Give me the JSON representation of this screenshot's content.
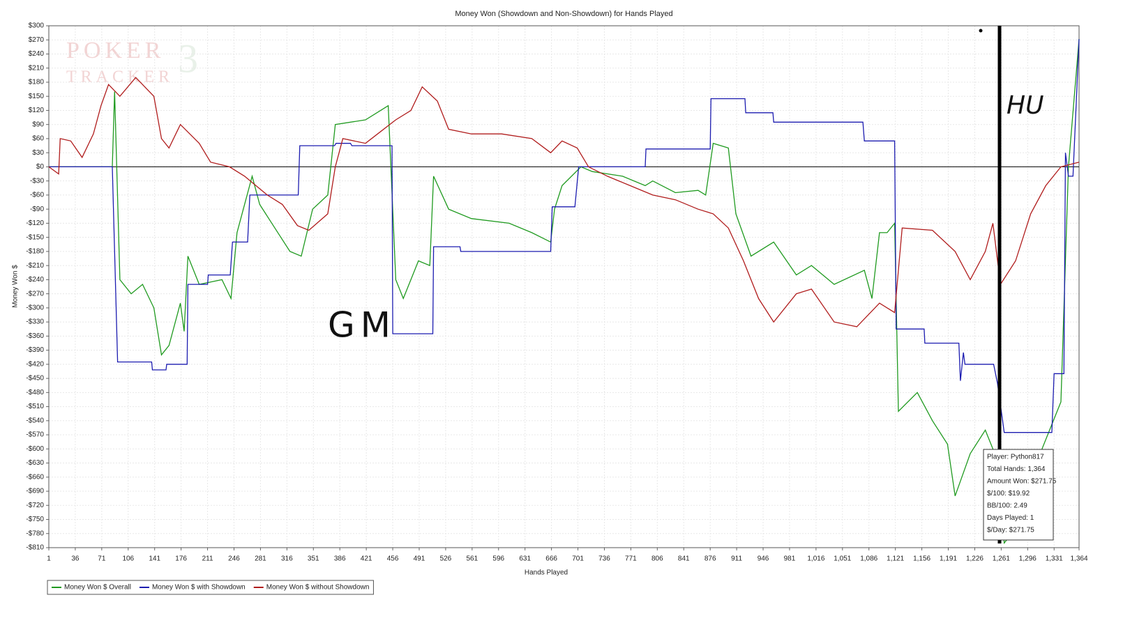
{
  "chart_data": {
    "type": "line",
    "title": "Money Won (Showdown and Non-Showdown) for Hands Played",
    "x_label": "Hands Played",
    "y_label": "Money Won $",
    "watermark": [
      "POKER",
      "TRACKER",
      "3"
    ],
    "annotations": [
      "GM",
      "HU"
    ],
    "tooltip": [
      "Player: Python817",
      "Total Hands: 1,364",
      "Amount Won: $271.75",
      "$/100: $19.92",
      "BB/100: 2.49",
      "Days Played: 1",
      "$/Day: $271.75"
    ],
    "grid": true,
    "legend": "bottom-left",
    "xlim": [
      1,
      1364
    ],
    "ylim": [
      -810,
      300
    ],
    "xticks": [
      1,
      36,
      71,
      106,
      141,
      176,
      211,
      246,
      281,
      316,
      351,
      386,
      421,
      456,
      491,
      526,
      561,
      596,
      631,
      666,
      701,
      736,
      771,
      806,
      841,
      876,
      911,
      946,
      981,
      {
        "value": 1016,
        "label": "1,016"
      },
      {
        "value": 1051,
        "label": "1,051"
      },
      {
        "value": 1086,
        "label": "1,086"
      },
      {
        "value": 1121,
        "label": "1,121"
      },
      {
        "value": 1156,
        "label": "1,156"
      },
      {
        "value": 1191,
        "label": "1,191"
      },
      {
        "value": 1226,
        "label": "1,226"
      },
      {
        "value": 1261,
        "label": "1,261"
      },
      {
        "value": 1296,
        "label": "1,296"
      },
      {
        "value": 1331,
        "label": "1,331"
      },
      {
        "value": 1364,
        "label": "1,364"
      }
    ],
    "yticks": [
      {
        "value": 300,
        "label": "$300"
      },
      {
        "value": 270,
        "label": "$270"
      },
      {
        "value": 240,
        "label": "$240"
      },
      {
        "value": 210,
        "label": "$210"
      },
      {
        "value": 180,
        "label": "$180"
      },
      {
        "value": 150,
        "label": "$150"
      },
      {
        "value": 120,
        "label": "$120"
      },
      {
        "value": 90,
        "label": "$90"
      },
      {
        "value": 60,
        "label": "$60"
      },
      {
        "value": 30,
        "label": "$30"
      },
      {
        "value": 0,
        "label": "$0"
      },
      {
        "value": -30,
        "label": "-$30"
      },
      {
        "value": -60,
        "label": "-$60"
      },
      {
        "value": -90,
        "label": "-$90"
      },
      {
        "value": -120,
        "label": "-$120"
      },
      {
        "value": -150,
        "label": "-$150"
      },
      {
        "value": -180,
        "label": "-$180"
      },
      {
        "value": -210,
        "label": "-$210"
      },
      {
        "value": -240,
        "label": "-$240"
      },
      {
        "value": -270,
        "label": "-$270"
      },
      {
        "value": -300,
        "label": "-$300"
      },
      {
        "value": -330,
        "label": "-$330"
      },
      {
        "value": -360,
        "label": "-$360"
      },
      {
        "value": -390,
        "label": "-$390"
      },
      {
        "value": -420,
        "label": "-$420"
      },
      {
        "value": -450,
        "label": "-$450"
      },
      {
        "value": -480,
        "label": "-$480"
      },
      {
        "value": -510,
        "label": "-$510"
      },
      {
        "value": -540,
        "label": "-$540"
      },
      {
        "value": -570,
        "label": "-$570"
      },
      {
        "value": -600,
        "label": "-$600"
      },
      {
        "value": -630,
        "label": "-$630"
      },
      {
        "value": -660,
        "label": "-$660"
      },
      {
        "value": -690,
        "label": "-$690"
      },
      {
        "value": -720,
        "label": "-$720"
      },
      {
        "value": -750,
        "label": "-$750"
      },
      {
        "value": -780,
        "label": "-$780"
      },
      {
        "value": -810,
        "label": "-$810"
      }
    ],
    "series": [
      {
        "name": "Money Won $ Overall",
        "color": "#1f9a1f",
        "x": [
          1,
          85,
          88,
          95,
          110,
          125,
          140,
          150,
          160,
          175,
          180,
          185,
          200,
          230,
          242,
          250,
          270,
          280,
          300,
          320,
          335,
          350,
          370,
          380,
          420,
          450,
          460,
          470,
          490,
          505,
          510,
          530,
          560,
          610,
          640,
          665,
          670,
          680,
          705,
          720,
          760,
          790,
          800,
          830,
          860,
          870,
          880,
          900,
          910,
          930,
          960,
          990,
          1010,
          1040,
          1080,
          1090,
          1100,
          1110,
          1120,
          1125,
          1150,
          1170,
          1190,
          1200,
          1220,
          1240,
          1255,
          1265,
          1290,
          1315,
          1340,
          1350,
          1364
        ],
        "values": [
          0,
          0,
          160,
          -240,
          -270,
          -250,
          -300,
          -400,
          -380,
          -290,
          -350,
          -190,
          -250,
          -240,
          -280,
          -140,
          -20,
          -80,
          -130,
          -180,
          -190,
          -90,
          -60,
          90,
          100,
          130,
          -240,
          -280,
          -200,
          -210,
          -20,
          -90,
          -110,
          -120,
          -140,
          -160,
          -90,
          -40,
          0,
          -10,
          -20,
          -40,
          -30,
          -55,
          -50,
          -60,
          50,
          40,
          -100,
          -190,
          -160,
          -230,
          -210,
          -250,
          -220,
          -280,
          -140,
          -140,
          -120,
          -520,
          -480,
          -540,
          -590,
          -700,
          -610,
          -560,
          -620,
          -800,
          -750,
          -600,
          -500,
          0,
          271.75
        ]
      },
      {
        "name": "Money Won $ with Showdown",
        "color": "#1c1cb0",
        "x": [
          1,
          85,
          92,
          137,
          138,
          156,
          157,
          184,
          185,
          211,
          212,
          241,
          244,
          264,
          267,
          331,
          333,
          379,
          381,
          400,
          402,
          455,
          456,
          509,
          510,
          545,
          546,
          665,
          667,
          697,
          702,
          790,
          791,
          876,
          877,
          922,
          923,
          959,
          960,
          1078,
          1080,
          1120,
          1122,
          1159,
          1160,
          1205,
          1207,
          1211,
          1213,
          1251,
          1256,
          1265,
          1266,
          1328,
          1331,
          1344,
          1346,
          1350,
          1356,
          1364
        ],
        "values": [
          0,
          0,
          -415,
          -415,
          -432,
          -432,
          -420,
          -420,
          -250,
          -250,
          -230,
          -230,
          -160,
          -160,
          -60,
          -60,
          45,
          45,
          50,
          50,
          45,
          45,
          -355,
          -355,
          -170,
          -170,
          -180,
          -180,
          -85,
          -85,
          0,
          0,
          38,
          38,
          145,
          145,
          115,
          115,
          95,
          95,
          55,
          55,
          -345,
          -345,
          -375,
          -375,
          -455,
          -395,
          -420,
          -420,
          -460,
          -565,
          -565,
          -565,
          -440,
          -440,
          30,
          -20,
          -20,
          271.75
        ]
      },
      {
        "name": "Money Won $ without Showdown",
        "color": "#b01c1c",
        "x": [
          1,
          14,
          16,
          30,
          45,
          60,
          70,
          80,
          95,
          116,
          140,
          150,
          160,
          175,
          200,
          215,
          240,
          260,
          275,
          290,
          310,
          330,
          345,
          370,
          380,
          390,
          420,
          440,
          460,
          480,
          495,
          515,
          530,
          560,
          600,
          640,
          665,
          680,
          700,
          715,
          740,
          770,
          800,
          830,
          860,
          880,
          900,
          920,
          940,
          960,
          990,
          1010,
          1040,
          1070,
          1100,
          1120,
          1130,
          1170,
          1200,
          1220,
          1240,
          1250,
          1260,
          1280,
          1300,
          1320,
          1340,
          1364
        ],
        "values": [
          0,
          -15,
          60,
          55,
          20,
          70,
          130,
          175,
          150,
          190,
          150,
          60,
          40,
          90,
          50,
          10,
          0,
          -20,
          -40,
          -60,
          -80,
          -125,
          -135,
          -100,
          0,
          60,
          50,
          75,
          100,
          120,
          170,
          140,
          80,
          70,
          70,
          60,
          30,
          55,
          40,
          0,
          -20,
          -40,
          -60,
          -70,
          -90,
          -100,
          -130,
          -200,
          -280,
          -330,
          -270,
          -260,
          -330,
          -340,
          -290,
          -310,
          -130,
          -135,
          -180,
          -240,
          -180,
          -120,
          -250,
          -200,
          -100,
          -40,
          0,
          10
        ]
      }
    ]
  }
}
